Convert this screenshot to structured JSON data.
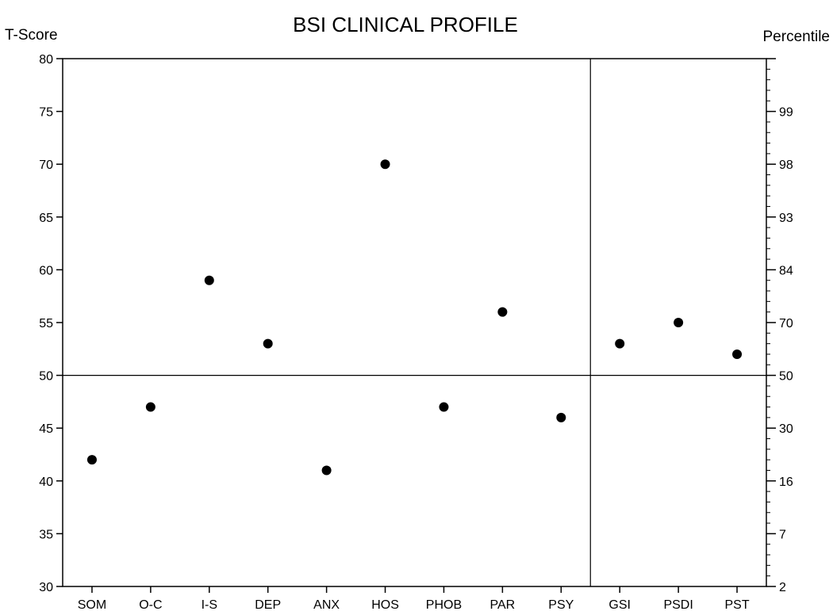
{
  "chart_data": {
    "type": "scatter",
    "title": "BSI CLINICAL PROFILE",
    "ylabel_left": "T-Score",
    "ylabel_right": "Percentile",
    "ylim": [
      30,
      80
    ],
    "yticks": [
      30,
      35,
      40,
      45,
      50,
      55,
      60,
      65,
      70,
      75,
      80
    ],
    "right_ticks": [
      {
        "label": "2",
        "t": 30
      },
      {
        "label": "7",
        "t": 35
      },
      {
        "label": "16",
        "t": 40
      },
      {
        "label": "30",
        "t": 45
      },
      {
        "label": "50",
        "t": 50
      },
      {
        "label": "70",
        "t": 55
      },
      {
        "label": "84",
        "t": 60
      },
      {
        "label": "93",
        "t": 65
      },
      {
        "label": "98",
        "t": 70
      },
      {
        "label": "99",
        "t": 75
      }
    ],
    "categories": [
      "SOM",
      "O-C",
      "I-S",
      "DEP",
      "ANX",
      "HOS",
      "PHOB",
      "PAR",
      "PSY",
      "GSI",
      "PSDI",
      "PST"
    ],
    "values": [
      42,
      47,
      59,
      53,
      41,
      70,
      47,
      56,
      46,
      53,
      55,
      52
    ],
    "reference_line_y": 50,
    "divider_after_category": "PSY",
    "colors": {
      "marker": "#000000",
      "axis": "#000000",
      "background": "#ffffff"
    },
    "grid": false,
    "legend": "none"
  }
}
